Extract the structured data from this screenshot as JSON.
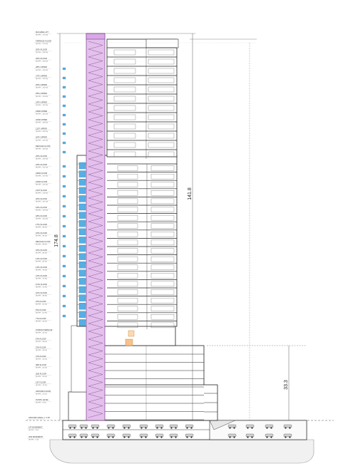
{
  "levels_top": [
    {
      "name": "MACHINE LIFT",
      "el": "(EL/FFL +173.00)"
    },
    {
      "name": "TERRACE FLOOR",
      "el": "(EL/FFL +170.40)"
    },
    {
      "name": "30TH FLOOR",
      "el": "(EL/FFL +166.90)"
    },
    {
      "name": "29TH FLOOR",
      "el": "(EL/FFL +163.40)"
    },
    {
      "name": "28TH UPPER",
      "el": "(EL/FFL +159.90)"
    },
    {
      "name": "27TH UPPER",
      "el": "(EL/FFL +156.40)"
    },
    {
      "name": "26TH UPPER",
      "el": "(EL/FFL +152.90)"
    },
    {
      "name": "25TH UPPER",
      "el": "(EL/FFL +149.40)"
    },
    {
      "name": "24TH UPPER",
      "el": "(EL/FFL +145.90)"
    },
    {
      "name": "23RD UPPER",
      "el": "(EL/FFL +142.40)"
    },
    {
      "name": "22ND UPPER",
      "el": "(EL/FFL +138.90)"
    },
    {
      "name": "21ST UPPER",
      "el": "(EL/FFL +135.40)"
    },
    {
      "name": "20TH UPPER",
      "el": "(EL/FFL +131.90)"
    },
    {
      "name": "REFUGE FLOOR",
      "el": "(EL/FFL +128.40)"
    }
  ],
  "levels_mid": [
    {
      "name": "25TH FLOOR",
      "el": "(EL/FFL +124.90)"
    },
    {
      "name": "24TH FLOOR",
      "el": "(EL/FFL +121.40)"
    },
    {
      "name": "23RD FLOOR",
      "el": "(EL/FFL +117.90)"
    },
    {
      "name": "22ND FLOOR",
      "el": "(EL/FFL +114.40)"
    },
    {
      "name": "21ST FLOOR",
      "el": "(EL/FFL +110.90)"
    },
    {
      "name": "20TH FLOOR",
      "el": "(EL/FFL +107.40)"
    },
    {
      "name": "19TH FLOOR",
      "el": "(EL/FFL +103.90)"
    },
    {
      "name": "18TH FLOOR",
      "el": "(EL/FFL +100.40)"
    },
    {
      "name": "17TH FLOOR",
      "el": "(EL/FFL +96.90)"
    },
    {
      "name": "16TH FLOOR",
      "el": "(EL/FFL +93.40)"
    },
    {
      "name": "REFUGE FLOOR",
      "el": "(EL/FFL +89.90)"
    },
    {
      "name": "15TH FLOOR",
      "el": "(EL/FFL +86.40)"
    },
    {
      "name": "14TH FLOOR",
      "el": "(EL/FFL +82.90)"
    },
    {
      "name": "13TH FLOOR",
      "el": "(EL/FFL +79.40)"
    },
    {
      "name": "12TH FLOOR",
      "el": "(EL/FFL +75.90)"
    },
    {
      "name": "11TH FLOOR",
      "el": "(EL/FFL +72.40)"
    },
    {
      "name": "10TH FLOOR",
      "el": "(EL/FFL +68.90)"
    },
    {
      "name": "9TH FLOOR",
      "el": "(EL/FFL +65.40)"
    },
    {
      "name": "8TH FLOOR",
      "el": "(EL/FFL +61.90)"
    },
    {
      "name": "7TH FLOOR",
      "el": "(EL/FFL +58.40)"
    }
  ],
  "levels_low": [
    {
      "name": "PODIUM TERRACE",
      "el": "(EL/FFL +42.50)"
    },
    {
      "name": "6TH FLOOR",
      "el": "(EL/FFL +38.00)"
    },
    {
      "name": "5TH FLOOR",
      "el": "(EL/FFL +33.50)"
    },
    {
      "name": "4TH FLOOR",
      "el": "(EL/FFL +29.00)"
    },
    {
      "name": "3RD FLOOR",
      "el": "(EL/FFL +24.50)"
    },
    {
      "name": "2ND FLOOR",
      "el": "(EL/FFL +20.00)"
    },
    {
      "name": "1ST FLOOR",
      "el": "(EL/FFL +15.50)"
    },
    {
      "name": "GROUND FLOOR",
      "el": "(EL/FFL +11.00)"
    },
    {
      "name": "PLINTH LEVEL",
      "el": "(EL/FFL +9.50)"
    }
  ],
  "levels_basement": [
    {
      "name": "GROUND LEVEL +/- 0.00",
      "el": ""
    },
    {
      "name": "1ST BASEMENT",
      "el": "(EL/FFL -3.50)"
    },
    {
      "name": "2ND BASEMENT",
      "el": "(EL/FFL -7.00)"
    }
  ],
  "dimensions": {
    "overall_height": "174.8",
    "tower_height": "141.8",
    "podium_height": "33.3"
  },
  "colors": {
    "core": "#e3c1ec",
    "glazing": "#58aee2",
    "line": "#222222"
  }
}
